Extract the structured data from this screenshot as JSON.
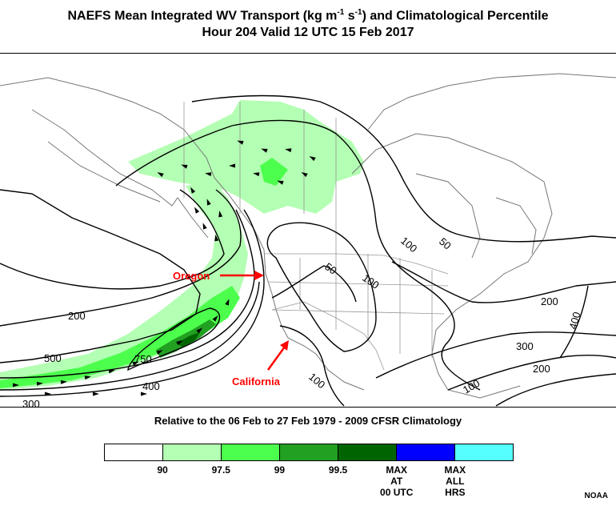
{
  "header": {
    "title_line1_prefix": "NAEFS Mean Integrated WV Transport (kg m",
    "title_line1_sup1": "-1",
    "title_line1_mid": " s",
    "title_line1_sup2": "-1",
    "title_line1_suffix": ") and Climatological Percentile",
    "title_line2": "Hour 204 Valid 12 UTC 15 Feb 2017"
  },
  "annotations": {
    "oregon": "Oregon",
    "california": "California",
    "arrow_color": "#ff0000"
  },
  "contours": {
    "labels": [
      "50",
      "100",
      "50",
      "100",
      "200",
      "500",
      "750",
      "400",
      "300",
      "200",
      "400",
      "300",
      "200",
      "100",
      "100"
    ]
  },
  "subtitle": "Relative to the 06 Feb to 27 Feb 1979 - 2009 CFSR Climatology",
  "colorbar": {
    "colors": [
      "#ffffff",
      "#b3ffb3",
      "#4dff4d",
      "#22a022",
      "#006400",
      "#0000ff",
      "#55ffff"
    ],
    "labels": [
      {
        "text": "90"
      },
      {
        "text": "97.5"
      },
      {
        "text": "99"
      },
      {
        "text": "99.5"
      },
      {
        "text": "MAX\nAT\n00 UTC"
      },
      {
        "text": "MAX\nALL\nHRS"
      }
    ]
  },
  "credit": "NOAA"
}
